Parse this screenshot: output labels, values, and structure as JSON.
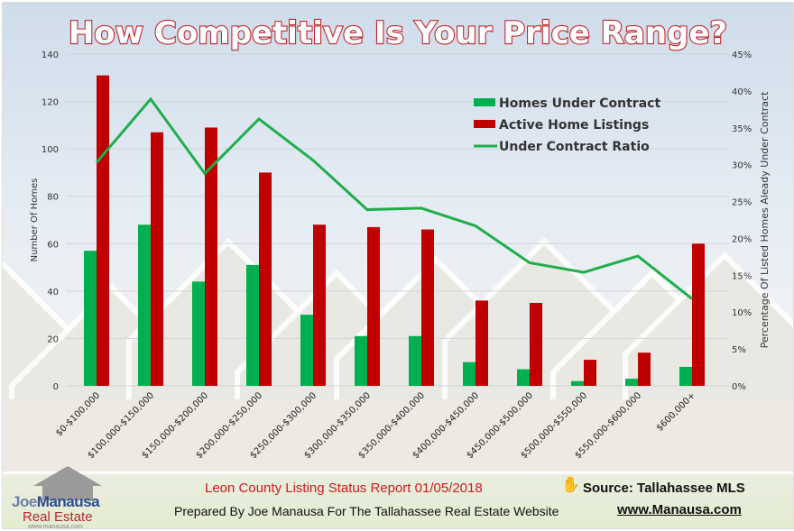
{
  "chart_data": {
    "type": "bar",
    "title": "How Competitive Is Your Price Range?",
    "categories": [
      "$0-$100,000",
      "$100,000-$150,000",
      "$150,000-$200,000",
      "$200,000-$250,000",
      "$250,000-$300,000",
      "$300,000-$350,000",
      "$350,000-$400,000",
      "$400,000-$450,000",
      "$450,000-$500,000",
      "$500,000-$550,000",
      "$550,000-$600,000",
      "$600,000+"
    ],
    "series": [
      {
        "name": "Homes Under Contract",
        "type": "bar",
        "axis": "left",
        "color": "#00b050",
        "values": [
          57,
          68,
          44,
          51,
          30,
          21,
          21,
          10,
          7,
          2,
          3,
          8
        ]
      },
      {
        "name": "Active Home Listings",
        "type": "bar",
        "axis": "left",
        "color": "#c00000",
        "values": [
          131,
          107,
          109,
          90,
          68,
          67,
          66,
          36,
          35,
          11,
          14,
          60
        ]
      },
      {
        "name": "Under Contract Ratio",
        "type": "line",
        "axis": "right",
        "color": "#1fae4b",
        "values": [
          30.3,
          38.9,
          28.8,
          36.2,
          30.6,
          23.9,
          24.1,
          21.7,
          16.7,
          15.4,
          17.6,
          11.8
        ]
      }
    ],
    "ylabel": "Number Of Homes",
    "ylim": [
      0,
      140
    ],
    "yticks": [
      "0",
      "20",
      "40",
      "60",
      "80",
      "100",
      "120",
      "140"
    ],
    "y2label": "Percentage Of Listed Homes Aleady Under Contract",
    "y2lim": [
      0,
      45
    ],
    "y2ticks": [
      "0%",
      "5%",
      "10%",
      "15%",
      "20%",
      "25%",
      "30%",
      "35%",
      "40%",
      "45%"
    ],
    "grid": true,
    "legend": "top-right"
  },
  "footer": {
    "report": "Leon County Listing Status Report 01/05/2018",
    "source": "Source: Tallahassee MLS",
    "prepared": "Prepared By Joe Manausa For The Tallahassee Real Estate Website",
    "url": "www.Manausa.com"
  },
  "logo": {
    "text": "JoeManausa Real Estate www.manausa.com"
  }
}
